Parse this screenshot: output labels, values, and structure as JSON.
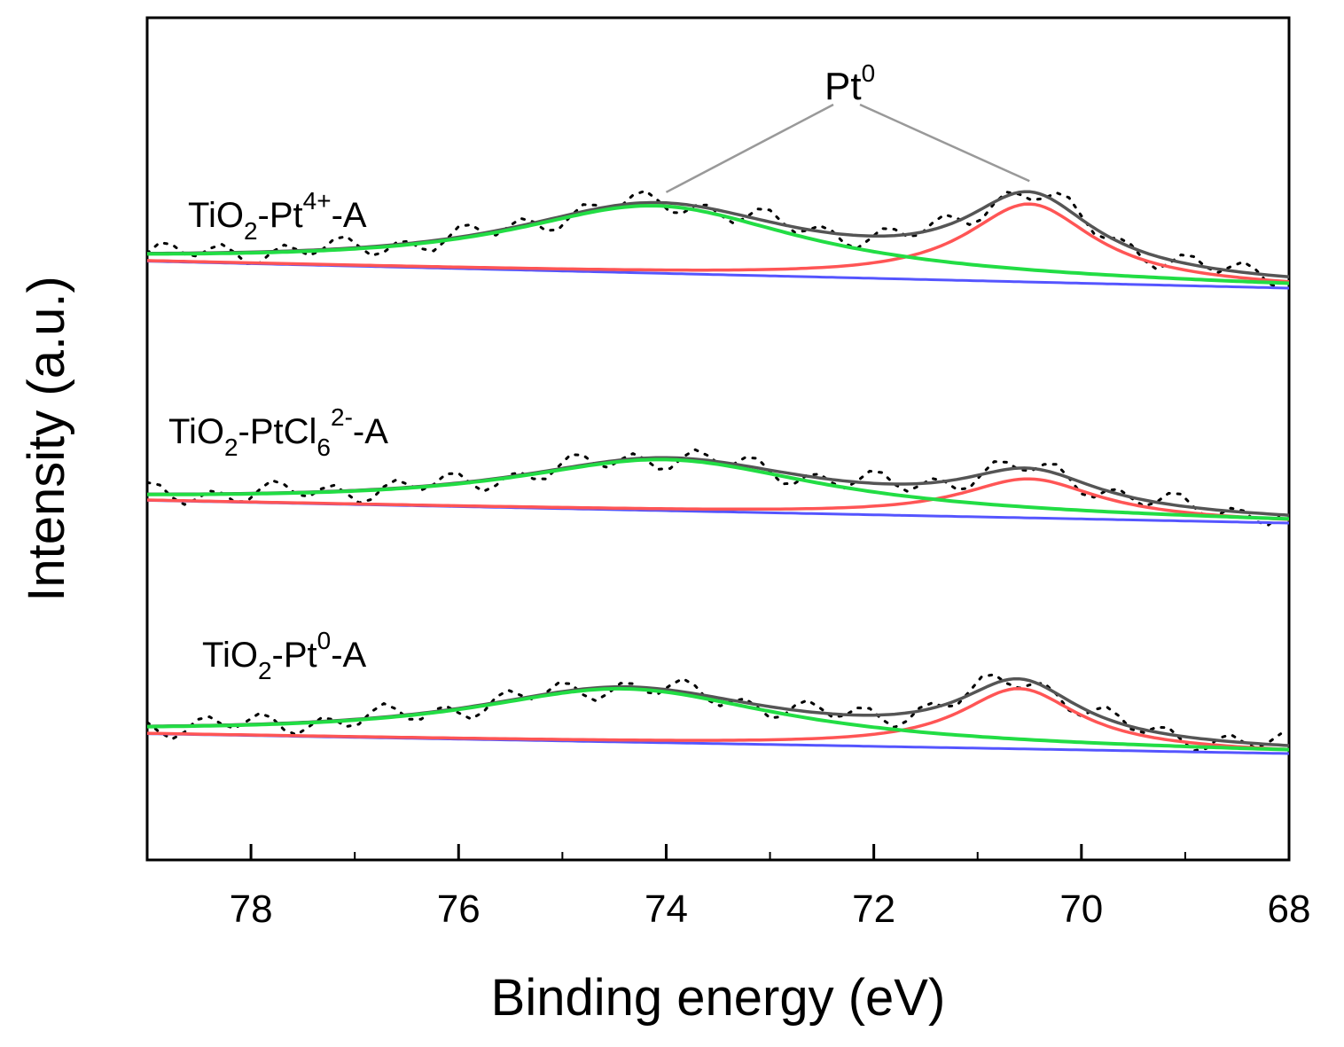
{
  "chart_data": {
    "type": "line",
    "title": "",
    "xlabel": "Binding energy (eV)",
    "ylabel": "Intensity (a.u.)",
    "xlim": [
      79,
      68
    ],
    "x_reversed": true,
    "xticks": [
      78,
      76,
      74,
      72,
      70,
      68
    ],
    "xtick_labels": [
      "78",
      "76",
      "74",
      "72",
      "70",
      "68"
    ],
    "yticks": false,
    "grid": false,
    "legend": "none",
    "colors": {
      "measured": "#000000",
      "envelope": "#555555",
      "peak_74": "#22dd44",
      "peak_70": "#ff5555",
      "background": "#5555ff"
    },
    "annotation": {
      "base": "Pt",
      "sup": "0",
      "points_to": [
        74.0,
        70.5
      ]
    },
    "samples": [
      {
        "name": "TiO2-Pt4+-A",
        "label_base": "TiO",
        "label_sub": "2",
        "label_mid": "-Pt",
        "label_sup": "4+",
        "label_end": "-A",
        "offset": 2.0,
        "bg_start": 0.38,
        "bg_end": 0.0,
        "peak_74": {
          "center": 74.1,
          "height": 0.95,
          "width": 1.7
        },
        "peak_70": {
          "center": 70.5,
          "height": 1.1,
          "width": 0.75
        }
      },
      {
        "name": "TiO2-PtCl62--A",
        "label_base": "TiO",
        "label_sub": "2",
        "label_mid": "-PtCl",
        "label_sub2": "6",
        "label_sup": "2-",
        "label_end": "-A",
        "offset": 1.0,
        "bg_start": 0.32,
        "bg_end": 0.0,
        "peak_74": {
          "center": 74.0,
          "height": 0.72,
          "width": 1.8
        },
        "peak_70": {
          "center": 70.5,
          "height": 0.55,
          "width": 0.8
        }
      },
      {
        "name": "TiO2-Pt0-A",
        "label_base": "TiO",
        "label_sub": "2",
        "label_mid": "-Pt",
        "label_sup": "0",
        "label_end": "-A",
        "offset": 0.0,
        "bg_start": 0.28,
        "bg_end": 0.0,
        "peak_74": {
          "center": 74.4,
          "height": 0.75,
          "width": 1.8
        },
        "peak_70": {
          "center": 70.6,
          "height": 0.85,
          "width": 0.7
        }
      }
    ]
  }
}
